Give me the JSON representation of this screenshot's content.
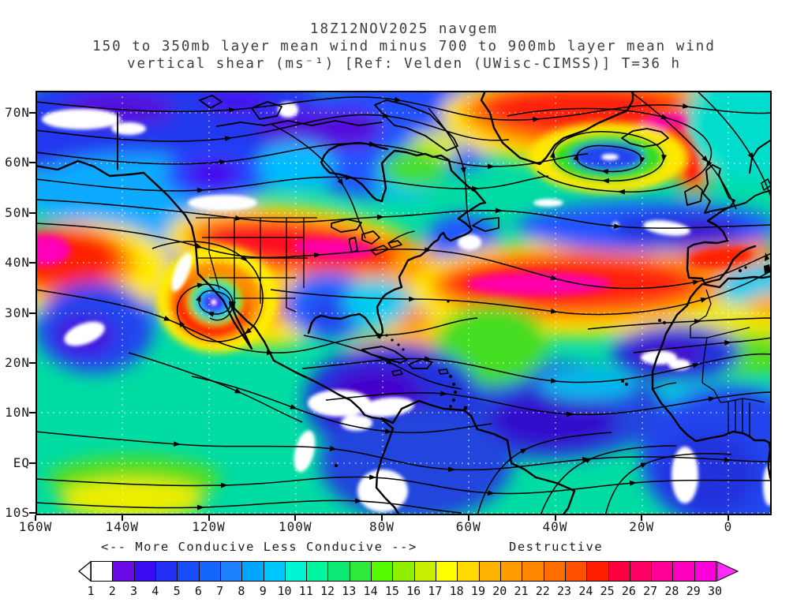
{
  "header": {
    "line1": "18Z12NOV2025 navgem",
    "line2": "150 to 350mb layer mean wind minus 700 to 900mb layer mean wind",
    "line3": "vertical shear (ms⁻¹) [Ref: Velden (UWisc-CIMSS)] T=36 h"
  },
  "map": {
    "lat_labels": [
      "70N",
      "60N",
      "50N",
      "40N",
      "30N",
      "20N",
      "10N",
      "EQ",
      "10S"
    ],
    "lon_labels": [
      "160W",
      "140W",
      "120W",
      "100W",
      "80W",
      "60W",
      "40W",
      "20W",
      "0"
    ]
  },
  "legend": {
    "conducive_text": "<-- More Conducive  Less Conducive -->",
    "destructive_text": "Destructive"
  },
  "colorbar": {
    "tick_labels": [
      "1",
      "2",
      "3",
      "4",
      "5",
      "6",
      "7",
      "8",
      "9",
      "10",
      "11",
      "12",
      "13",
      "14",
      "15",
      "16",
      "17",
      "18",
      "19",
      "20",
      "21",
      "22",
      "23",
      "24",
      "25",
      "26",
      "27",
      "28",
      "29",
      "30"
    ],
    "palette": [
      "#FFFFFF",
      "#6B0BE8",
      "#3A0BF0",
      "#2430F5",
      "#1A4DFA",
      "#1566FA",
      "#1E82FF",
      "#00A5FF",
      "#00C8FF",
      "#00F5D2",
      "#00F5A0",
      "#0BE873",
      "#2EE83C",
      "#55FA00",
      "#91F000",
      "#C8F000",
      "#FFFF00",
      "#FFD900",
      "#FFB200",
      "#FF9C00",
      "#FF8800",
      "#FF6E00",
      "#FF5000",
      "#FF1E00",
      "#FF0041",
      "#FF0064",
      "#FF0096",
      "#FF00BE",
      "#FF00DC"
    ],
    "left_arrow_color": "#FFFFFF",
    "right_arrow_color": "#FF2BFF",
    "units": "ms⁻¹",
    "scale_min": 1,
    "scale_max": 30
  }
}
